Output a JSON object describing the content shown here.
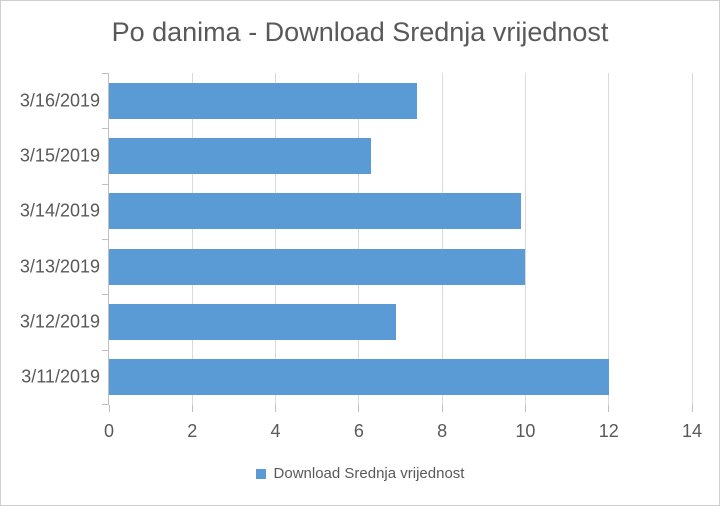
{
  "chart": {
    "background": "#ffffff",
    "border_color": "#cfcfcf"
  },
  "chart_data": {
    "type": "bar",
    "orientation": "horizontal",
    "title": "Po danima - Download Srednja vrijednost",
    "categories": [
      "3/16/2019",
      "3/15/2019",
      "3/14/2019",
      "3/13/2019",
      "3/12/2019",
      "3/11/2019"
    ],
    "values": [
      7.4,
      6.3,
      9.9,
      10.0,
      6.9,
      12.0
    ],
    "series_name": "Download Srednja vrijednost",
    "xlabel": "",
    "ylabel": "",
    "xlim": [
      0,
      14
    ],
    "x_ticks": [
      0,
      2,
      4,
      6,
      8,
      10,
      12,
      14
    ],
    "grid": true,
    "legend": {
      "label": "Download Srednja vrijednost",
      "position": "bottom",
      "marker_color": "#5b9bd5"
    },
    "bar_color": "#5b9bd5",
    "gridline_color": "#d9d9d9",
    "axis_color": "#bfbfbf",
    "text_color": "#595959"
  }
}
